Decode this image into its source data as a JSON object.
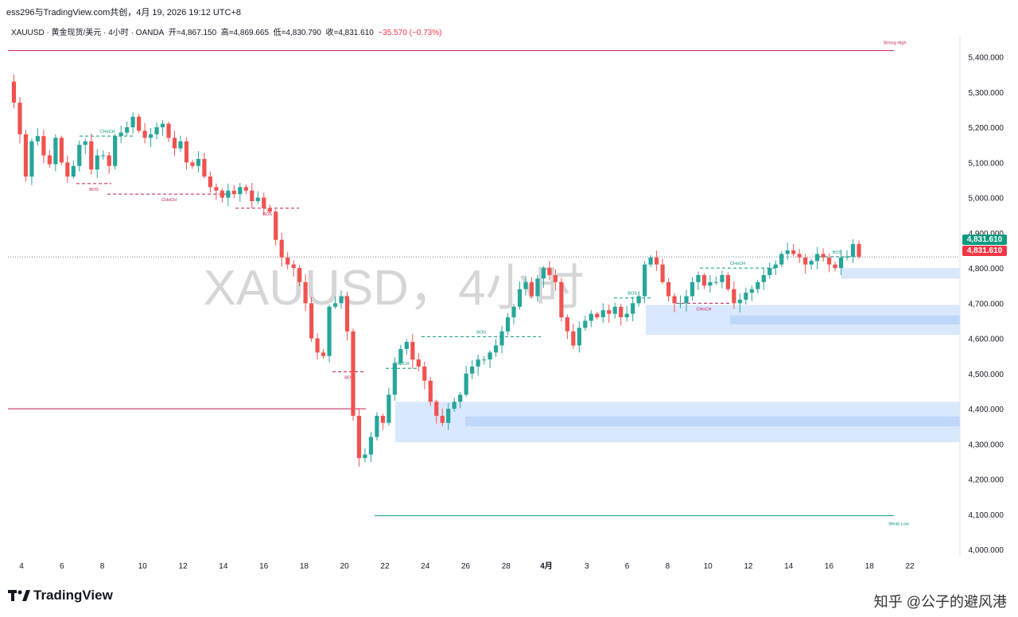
{
  "header": {
    "source_line": "ess296与TradingView.com共创，4月 19, 2026 19:12 UTC+8"
  },
  "legend": {
    "symbol": "XAUUSD · 黄金现货/美元 · 4小时 · OANDA",
    "open_label": "开",
    "open": "=4,867.150",
    "high_label": "高",
    "high": "=4,869.665",
    "low_label": "低",
    "low": "=4,830.790",
    "close_label": "收",
    "close": "=4,831.610",
    "change": "−35.570 (−0.73%)"
  },
  "watermark": "XAUUSD，4小时",
  "price_tags": {
    "last_price": "4,831.610",
    "last_price_color": "#089981",
    "close_price": "4,831.610",
    "close_price_color": "#f23645"
  },
  "footer": {
    "brand": "TradingView",
    "credit": "知乎 @公子的避风港"
  },
  "colors": {
    "up": "#26a69a",
    "down": "#ef5350",
    "zone": "#bbd5fb",
    "structure_bull": "#089981",
    "structure_bear": "#c2185b"
  },
  "chart_data": {
    "type": "candlestick",
    "symbol": "XAUUSD",
    "timeframe": "4小时",
    "y_axis_ticks": [
      "5,400.000",
      "5,300.000",
      "5,200.000",
      "5,100.000",
      "5,000.000",
      "4,900.000",
      "4,800.000",
      "4,700.000",
      "4,600.000",
      "4,500.000",
      "4,400.000",
      "4,300.000",
      "4,200.000",
      "4,100.000",
      "4,000.000"
    ],
    "ylim": [
      3980,
      5460
    ],
    "x_axis_ticks": [
      "4",
      "6",
      "8",
      "10",
      "12",
      "14",
      "16",
      "18",
      "20",
      "22",
      "24",
      "26",
      "28",
      "4月",
      "3",
      "6",
      "8",
      "10",
      "12",
      "14",
      "16",
      "18",
      "22"
    ],
    "annotations": [
      {
        "label": "Strong High",
        "price": 5418
      },
      {
        "label": "Weak Low",
        "price": 4096
      },
      {
        "label": "CHoCH",
        "price": 5175
      },
      {
        "label": "BOS",
        "price": 5040
      },
      {
        "label": "CHoCH",
        "price": 5010
      },
      {
        "label": "BOS",
        "price": 4970
      },
      {
        "label": "BOS",
        "price": 4505
      },
      {
        "label": "CHoCH",
        "price": 4515
      },
      {
        "label": "BOS",
        "price": 4605
      },
      {
        "label": "BOS",
        "price": 4715
      },
      {
        "label": "CHoCH",
        "price": 4700
      },
      {
        "label": "CHoCH",
        "price": 4800
      },
      {
        "label": "BOS",
        "price": 4832
      }
    ],
    "price_levels": [
      {
        "price": 5418,
        "color": "#c2185b"
      },
      {
        "price": 4400,
        "color": "#c2185b"
      },
      {
        "price": 4096,
        "color": "#089981"
      },
      {
        "price": 4831.61,
        "style": "dotted"
      }
    ],
    "zones": [
      {
        "top": 4800,
        "bottom": 4770
      },
      {
        "top": 4695,
        "bottom": 4610
      },
      {
        "top": 4665,
        "bottom": 4640
      },
      {
        "top": 4420,
        "bottom": 4305
      },
      {
        "top": 4378,
        "bottom": 4350
      }
    ],
    "path_points": [
      5330,
      5270,
      5180,
      5060,
      5160,
      5175,
      5120,
      5095,
      5170,
      5100,
      5060,
      5090,
      5150,
      5160,
      5080,
      5120,
      5120,
      5090,
      5175,
      5185,
      5200,
      5230,
      5190,
      5170,
      5180,
      5200,
      5210,
      5170,
      5140,
      5160,
      5100,
      5090,
      5110,
      5060,
      5030,
      5020,
      5000,
      5020,
      5010,
      5030,
      5020,
      4990,
      5000,
      4970,
      4960,
      4880,
      4830,
      4810,
      4800,
      4760,
      4700,
      4600,
      4560,
      4550,
      4690,
      4700,
      4720,
      4620,
      4380,
      4260,
      4270,
      4320,
      4380,
      4360,
      4440,
      4530,
      4570,
      4590,
      4540,
      4520,
      4480,
      4420,
      4380,
      4360,
      4400,
      4420,
      4440,
      4500,
      4520,
      4540,
      4540,
      4560,
      4580,
      4620,
      4660,
      4690,
      4740,
      4760,
      4720,
      4770,
      4800,
      4780,
      4760,
      4660,
      4620,
      4580,
      4630,
      4650,
      4670,
      4660,
      4680,
      4670,
      4690,
      4660,
      4670,
      4700,
      4720,
      4810,
      4830,
      4810,
      4760,
      4720,
      4700,
      4700,
      4720,
      4760,
      4780,
      4750,
      4760,
      4760,
      4780,
      4740,
      4700,
      4710,
      4730,
      4740,
      4760,
      4780,
      4800,
      4810,
      4840,
      4850,
      4840,
      4830,
      4810,
      4820,
      4840,
      4830,
      4810,
      4800,
      4830,
      4832,
      4868,
      4832
    ]
  }
}
